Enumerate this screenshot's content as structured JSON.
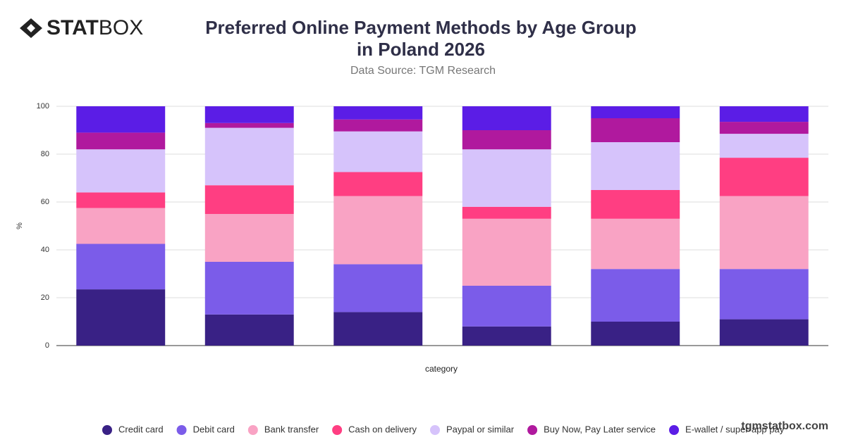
{
  "brand": {
    "bold": "STAT",
    "regular": "BOX"
  },
  "watermark": "tgmstatbox.com",
  "chart_data": {
    "type": "stacked-bar",
    "title": "Preferred Online Payment Methods by Age Group in Poland 2026",
    "subtitle": "Data Source: TGM Research",
    "x_label": "category",
    "y_label": "%",
    "categories": [
      null,
      null,
      null,
      null,
      null,
      null
    ],
    "ylim": [
      0,
      100
    ],
    "yticks": [
      0,
      20,
      40,
      60,
      80,
      100
    ],
    "grid": true,
    "legend": "bottom",
    "series": [
      {
        "name": "Credit card",
        "color": "#392185",
        "values": [
          23.5,
          13,
          14,
          8,
          10,
          11
        ]
      },
      {
        "name": "Debit card",
        "color": "#7b5ce9",
        "values": [
          19,
          22,
          20,
          17,
          22,
          21
        ]
      },
      {
        "name": "Bank transfer",
        "color": "#f9a3c4",
        "values": [
          15,
          20,
          28.5,
          28,
          21,
          30.5
        ]
      },
      {
        "name": "Cash on delivery",
        "color": "#ff3e82",
        "values": [
          6.5,
          12,
          10,
          5,
          12,
          16
        ]
      },
      {
        "name": "Paypal or similar",
        "color": "#d6c3fb",
        "values": [
          18,
          24,
          17,
          24,
          20,
          10
        ]
      },
      {
        "name": "Buy Now, Pay Later service",
        "color": "#b0199e",
        "values": [
          7,
          2,
          5,
          8,
          10,
          5
        ]
      },
      {
        "name": "E-wallet / super-app pay",
        "color": "#5b1de6",
        "values": [
          11,
          7,
          5.5,
          10,
          5,
          6.5
        ]
      }
    ]
  }
}
